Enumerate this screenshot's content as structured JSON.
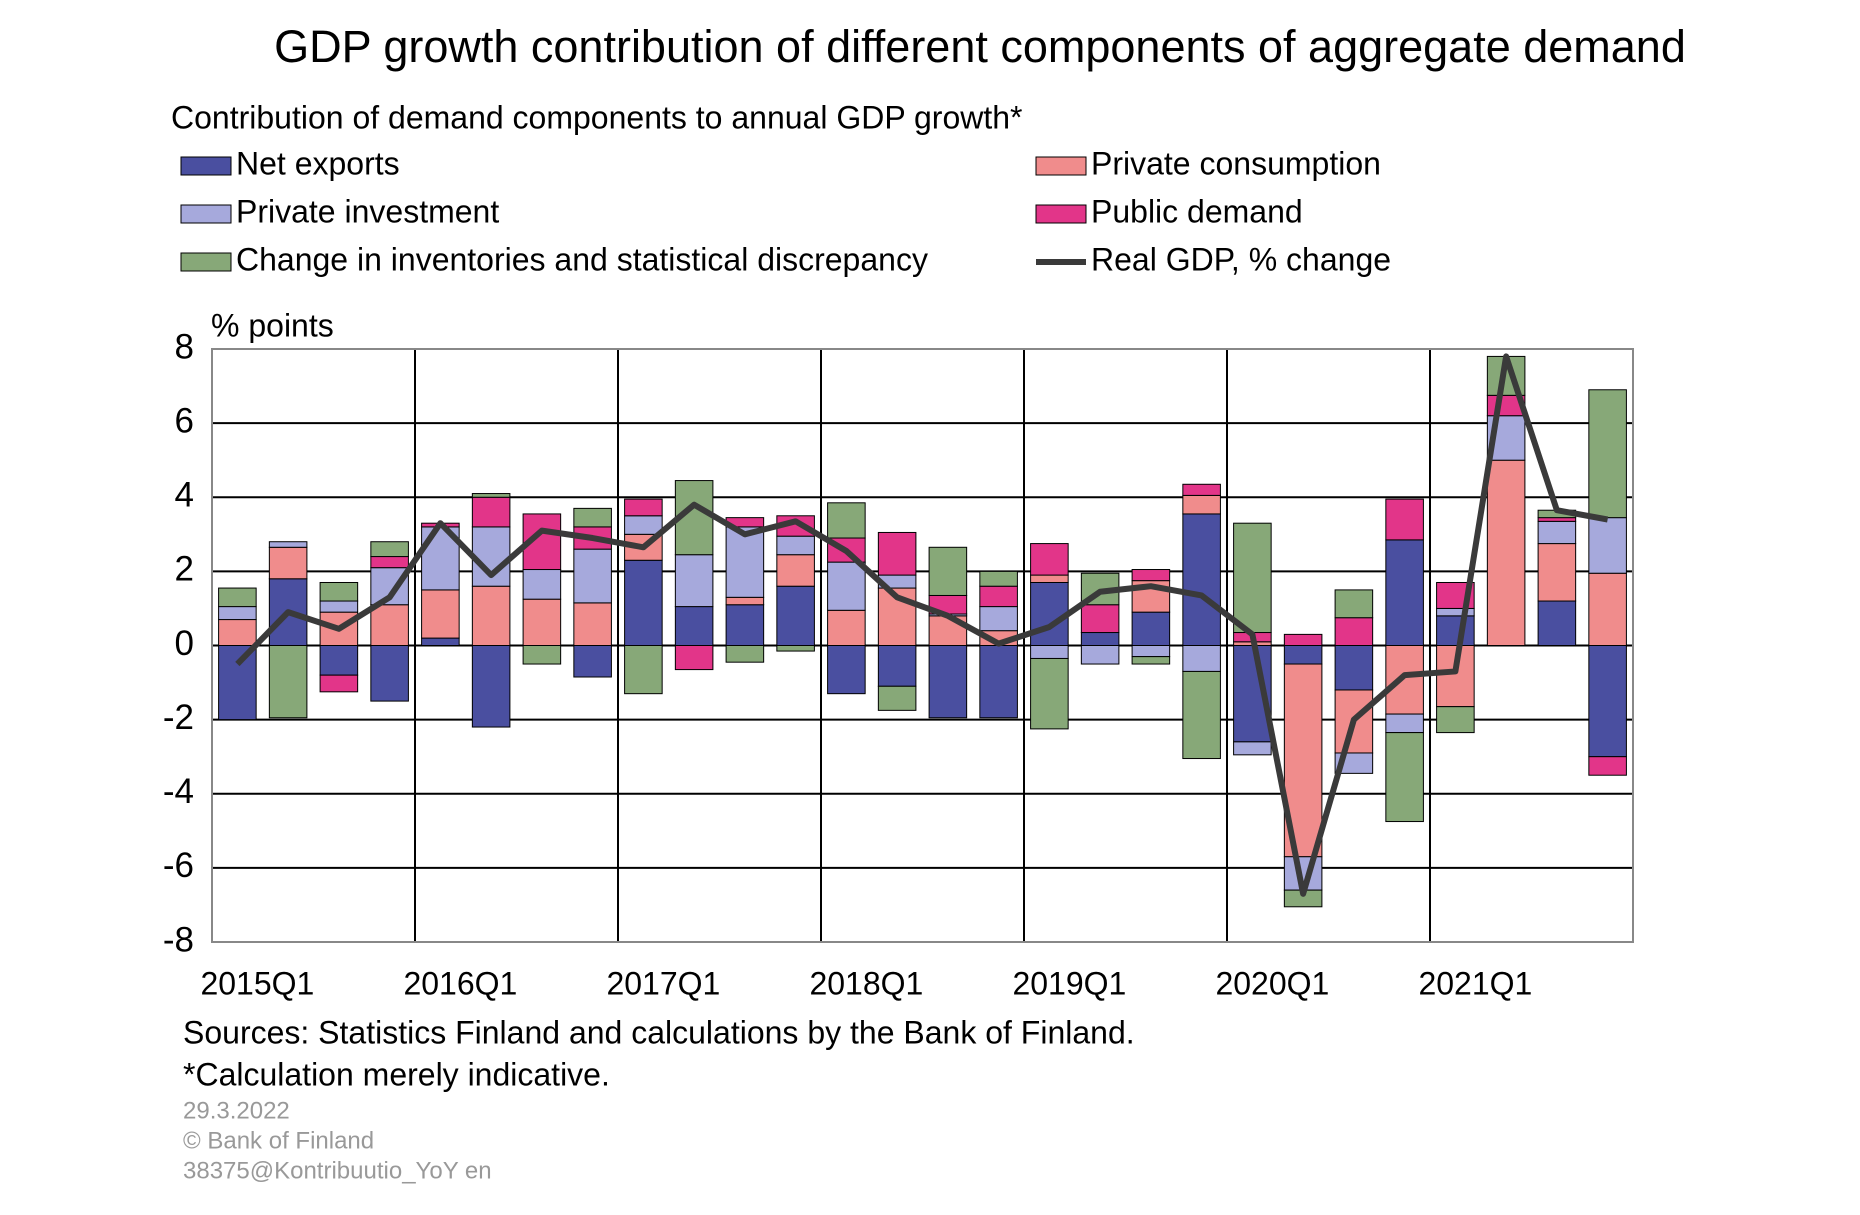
{
  "chart_data": {
    "type": "bar",
    "stacked": true,
    "title": "GDP growth contribution of different components of aggregate demand",
    "subtitle": "Contribution of demand components to annual GDP growth*",
    "y_label": "% points",
    "categories": [
      "2015Q1",
      null,
      null,
      null,
      "2016Q1",
      null,
      null,
      null,
      "2017Q1",
      null,
      null,
      null,
      "2018Q1",
      null,
      null,
      null,
      "2019Q1",
      null,
      null,
      null,
      "2020Q1",
      null,
      null,
      null,
      "2021Q1",
      null,
      null,
      null
    ],
    "series": [
      {
        "name": "Net exports",
        "color": "#4a4fa0",
        "values": [
          -2.0,
          1.8,
          -0.8,
          -1.5,
          0.2,
          -2.2,
          0,
          -0.85,
          2.3,
          1.05,
          1.1,
          1.6,
          -1.3,
          -1.1,
          -1.95,
          -1.95,
          1.7,
          0.35,
          0.9,
          3.55,
          -2.6,
          -0.5,
          -1.2,
          2.85,
          0.8,
          0,
          1.2,
          -3.0
        ]
      },
      {
        "name": "Private consumption",
        "color": "#f08c8c",
        "values": [
          0.7,
          0.85,
          0.9,
          1.1,
          1.3,
          1.6,
          1.25,
          1.15,
          0.7,
          0,
          0.2,
          0.85,
          0.95,
          1.55,
          0.8,
          0.4,
          0.2,
          0,
          0.85,
          0.5,
          0.1,
          -5.2,
          -1.7,
          -1.85,
          -1.65,
          5.0,
          1.55,
          1.95
        ]
      },
      {
        "name": "Private investment",
        "color": "#a6a9dc",
        "values": [
          0.35,
          0.15,
          0.3,
          1.0,
          1.7,
          1.6,
          0.8,
          1.45,
          0.5,
          1.4,
          1.9,
          0.5,
          1.3,
          0.35,
          0.05,
          0.65,
          -0.35,
          -0.5,
          -0.3,
          -0.7,
          -0.35,
          -0.9,
          -0.55,
          -0.5,
          0.2,
          1.2,
          0.6,
          1.5
        ]
      },
      {
        "name": "Public demand",
        "color": "#e23589",
        "values": [
          0,
          0,
          -0.45,
          0.3,
          0.1,
          0.8,
          1.5,
          0.6,
          0.45,
          -0.65,
          0.25,
          0.55,
          0.65,
          1.15,
          0.5,
          0.55,
          0.85,
          0.75,
          0.3,
          0.3,
          0.25,
          0.3,
          0.75,
          1.1,
          0.7,
          0.55,
          0.1,
          -0.5
        ]
      },
      {
        "name": "Change in inventories and statistical discrepancy",
        "color": "#87a878",
        "values": [
          0.5,
          -1.95,
          0.5,
          0.4,
          0,
          0.1,
          -0.5,
          0.5,
          -1.3,
          2.0,
          -0.45,
          -0.15,
          0.95,
          -0.65,
          1.3,
          0.4,
          -1.9,
          0.85,
          -0.2,
          -2.35,
          2.95,
          -0.45,
          0.75,
          -2.4,
          -0.7,
          1.05,
          0.2,
          3.45
        ]
      },
      {
        "name": "Real GDP, % change",
        "color": "#3a3a3a",
        "type": "line",
        "values": [
          -0.5,
          0.9,
          0.45,
          1.3,
          3.3,
          1.9,
          3.1,
          2.9,
          2.65,
          3.8,
          3.0,
          3.35,
          2.55,
          1.3,
          0.8,
          0.05,
          0.5,
          1.45,
          1.6,
          1.35,
          0.3,
          -6.7,
          -2.0,
          -0.8,
          -0.7,
          7.8,
          3.65,
          3.4
        ]
      }
    ],
    "ylim": [
      -8,
      8
    ],
    "yticks": [
      -8,
      -6,
      -4,
      -2,
      0,
      2,
      4,
      6,
      8
    ],
    "grid": true,
    "notes": [
      "Sources: Statistics Finland and calculations by the Bank of Finland.",
      "*Calculation merely indicative."
    ],
    "footer": [
      "29.3.2022",
      "© Bank of Finland",
      "38375@Kontribuutio_YoY  en"
    ]
  }
}
